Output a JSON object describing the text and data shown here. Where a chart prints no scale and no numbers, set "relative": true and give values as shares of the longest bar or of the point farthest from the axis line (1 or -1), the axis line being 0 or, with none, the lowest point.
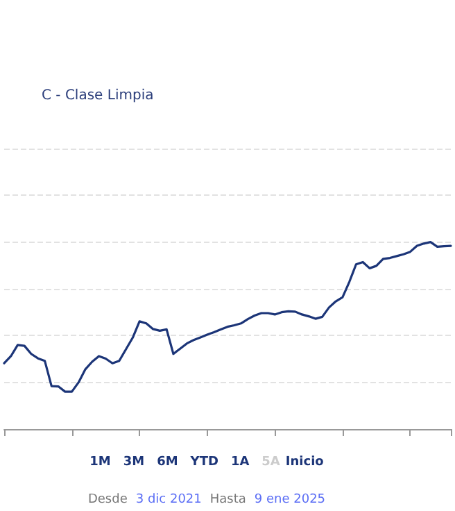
{
  "chart_data": {
    "type": "line",
    "relative": true,
    "grid": "y",
    "legend": "top left",
    "line_style": "solid",
    "marker": "none",
    "categories": [
      null,
      null,
      null,
      null,
      null,
      null,
      null,
      null,
      null,
      null,
      null,
      null,
      null,
      null,
      null,
      null,
      null,
      null,
      null,
      null,
      null,
      null,
      null,
      null,
      null,
      null,
      null,
      null,
      null,
      null,
      null,
      null,
      null,
      null,
      null,
      null,
      null,
      null,
      null,
      null,
      null,
      null,
      null,
      null,
      null,
      null,
      null,
      null,
      null,
      null,
      null,
      null,
      null,
      null,
      null,
      null,
      null,
      null,
      null,
      null,
      null,
      null,
      null,
      null,
      null,
      null,
      null
    ],
    "series": [
      {
        "name": "C - Clase Limpia",
        "color": "#1c3578",
        "values": [
          0.352,
          0.39,
          0.45,
          0.445,
          0.402,
          0.378,
          0.365,
          0.23,
          0.228,
          0.2,
          0.2,
          0.25,
          0.32,
          0.36,
          0.39,
          0.377,
          0.352,
          0.365,
          0.427,
          0.489,
          0.576,
          0.565,
          0.535,
          0.526,
          0.533,
          0.402,
          0.43,
          0.458,
          0.476,
          0.49,
          0.505,
          0.518,
          0.533,
          0.547,
          0.555,
          0.565,
          0.588,
          0.607,
          0.62,
          0.62,
          0.613,
          0.625,
          0.63,
          0.628,
          0.613,
          0.603,
          0.59,
          0.6,
          0.65,
          0.683,
          0.705,
          0.787,
          0.881,
          0.893,
          0.86,
          0.873,
          0.91,
          0.915,
          0.925,
          0.935,
          0.948,
          0.98,
          0.992,
          1,
          0.975,
          0.978,
          0.98
        ]
      }
    ],
    "annotations": [
      "1M",
      "3M",
      "6M",
      "YTD",
      "1A",
      "5A",
      "Inicio",
      "Desde",
      "3 dic 2021",
      "Hasta",
      "9 ene 2025"
    ]
  }
}
